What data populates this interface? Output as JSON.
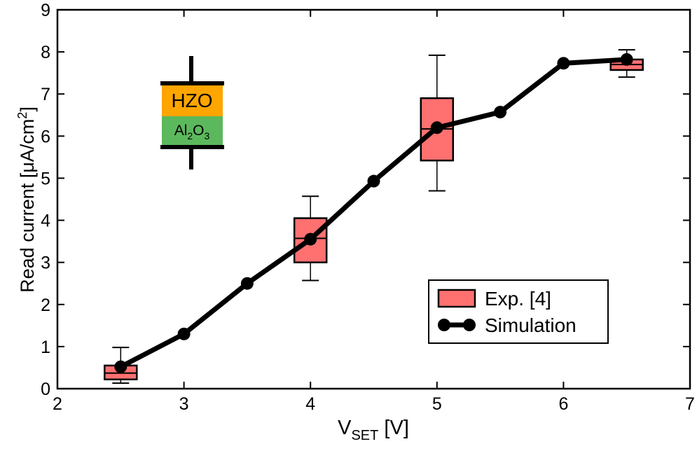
{
  "chart_data": {
    "type": "combo",
    "x_label": [
      "V",
      "SET",
      " [V]"
    ],
    "y_label": [
      "Read current [μA/cm",
      "2",
      "]"
    ],
    "xlim": [
      2,
      7
    ],
    "xticks": [
      2,
      3,
      4,
      5,
      6,
      7
    ],
    "ylim": [
      0,
      9
    ],
    "yticks": [
      0,
      1,
      2,
      3,
      4,
      5,
      6,
      7,
      8,
      9
    ],
    "legend": "lower right",
    "inset": [
      "HZO",
      "Al",
      "2",
      "O",
      "3"
    ],
    "series": [
      {
        "name": "Exp. [4]",
        "type": "box",
        "color": "#ff7070",
        "x": [
          2.5,
          4,
          5,
          6.5
        ],
        "min": [
          0.13,
          2.57,
          4.7,
          7.4
        ],
        "q1": [
          0.22,
          3.0,
          5.42,
          7.57
        ],
        "median": [
          0.37,
          3.57,
          6.17,
          7.7
        ],
        "q3": [
          0.55,
          4.05,
          6.9,
          7.82
        ],
        "max": [
          0.98,
          4.57,
          7.92,
          8.05
        ]
      },
      {
        "name": "Simulation",
        "type": "line",
        "color": "#000000",
        "x": [
          2.5,
          3,
          3.5,
          4,
          4.5,
          5,
          5.5,
          6,
          6.5
        ],
        "values": [
          0.52,
          1.3,
          2.5,
          3.55,
          4.93,
          6.2,
          6.57,
          7.73,
          7.82
        ]
      }
    ]
  }
}
